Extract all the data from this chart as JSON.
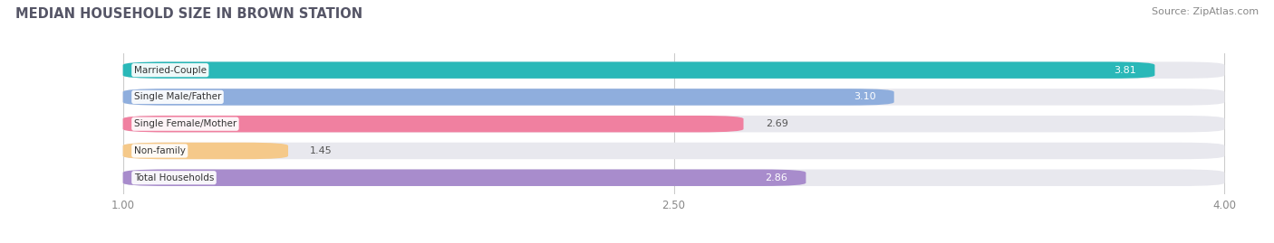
{
  "title": "MEDIAN HOUSEHOLD SIZE IN BROWN STATION",
  "source": "Source: ZipAtlas.com",
  "categories": [
    "Married-Couple",
    "Single Male/Father",
    "Single Female/Mother",
    "Non-family",
    "Total Households"
  ],
  "values": [
    3.81,
    3.1,
    2.69,
    1.45,
    2.86
  ],
  "colors": [
    "#2ab8b8",
    "#8faedd",
    "#f080a0",
    "#f5c98a",
    "#a88ccc"
  ],
  "label_colors": [
    "white",
    "white",
    "black",
    "black",
    "white"
  ],
  "xlim": [
    0.7,
    4.1
  ],
  "xstart": 1.0,
  "xend": 4.0,
  "xticks": [
    1.0,
    2.5,
    4.0
  ],
  "bar_height": 0.62,
  "background_color": "#ffffff",
  "bar_background": "#e8e8ee"
}
